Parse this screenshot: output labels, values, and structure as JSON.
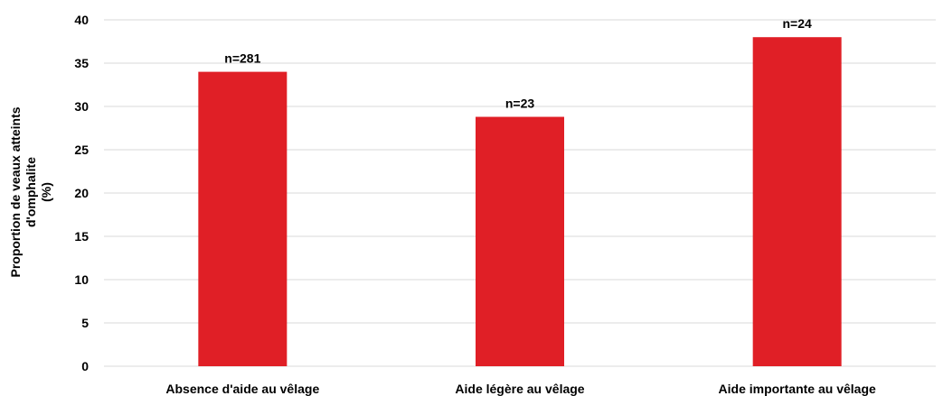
{
  "chart_data": {
    "type": "bar",
    "categories": [
      "Absence d'aide au vêlage",
      "Aide légère au vêlage",
      "Aide importante au vêlage"
    ],
    "values": [
      34,
      28.8,
      38
    ],
    "data_labels": [
      "n=281",
      "n=23",
      "n=24"
    ],
    "title": "",
    "xlabel": "",
    "ylabel_lines": [
      "Proportion de veaux atteints",
      "d'omphalite",
      "(%)"
    ],
    "ylim": [
      0,
      40
    ],
    "yticks": [
      0,
      5,
      10,
      15,
      20,
      25,
      30,
      35,
      40
    ],
    "grid": true,
    "legend": "none",
    "bar_color": "#e01f26"
  }
}
